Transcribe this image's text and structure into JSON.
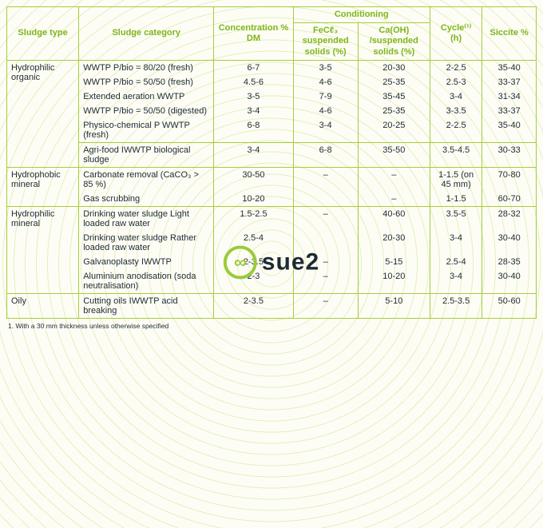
{
  "headers": {
    "type": "Sludge type",
    "category": "Sludge category",
    "concentration": "Concentration % DM",
    "conditioning": "Conditioning",
    "fecl3": "FeCℓ₃ suspended solids (%)",
    "caoh": "Ca(OH) /suspended solids (%)",
    "cycle": "Cycle⁽¹⁾ (h)",
    "siccite": "Siccite %"
  },
  "logo_text": "sue2",
  "footnote": "1. With a 30 mm thickness unless otherwise specified",
  "groups": [
    {
      "type": "Hydrophilic organic",
      "subgroups": [
        {
          "rows": [
            {
              "cat": "WWTP P/bio = 80/20 (fresh)",
              "conc": "6-7",
              "fe": "3-5",
              "ca": "20-30",
              "cy": "2-2.5",
              "si": "35-40"
            },
            {
              "cat": "WWTP P/bio = 50/50 (fresh)",
              "conc": "4.5-6",
              "fe": "4-6",
              "ca": "25-35",
              "cy": "2.5-3",
              "si": "33-37"
            },
            {
              "cat": "Extended aeration WWTP",
              "conc": "3-5",
              "fe": "7-9",
              "ca": "35-45",
              "cy": "3-4",
              "si": "31-34"
            },
            {
              "cat": "WWTP P/bio = 50/50 (digested)",
              "conc": "3-4",
              "fe": "4-6",
              "ca": "25-35",
              "cy": "3-3.5",
              "si": "33-37"
            },
            {
              "cat": "Physico-chemical P WWTP (fresh)",
              "conc": "6-8",
              "fe": "3-4",
              "ca": "20-25",
              "cy": "2-2.5",
              "si": "35-40"
            }
          ]
        },
        {
          "rows": [
            {
              "cat": "Agri-food IWWTP biological sludge",
              "conc": "3-4",
              "fe": "6-8",
              "ca": "35-50",
              "cy": "3.5-4.5",
              "si": "30-33"
            }
          ]
        }
      ]
    },
    {
      "type": "Hydrophobic mineral",
      "subgroups": [
        {
          "rows": [
            {
              "cat": "Carbonate removal (CaCO₃ > 85 %)",
              "conc": "30-50",
              "fe": "–",
              "ca": "–",
              "cy": "1-1.5 (on 45 mm)",
              "si": "70-80"
            },
            {
              "cat": "Gas scrubbing",
              "conc": "10-20",
              "fe": "",
              "ca": "–",
              "cy": "1-1.5",
              "si": "60-70"
            }
          ]
        }
      ]
    },
    {
      "type": "Hydrophilic mineral",
      "subgroups": [
        {
          "rows": [
            {
              "cat": "Drinking water sludge Light loaded raw water",
              "conc": "1.5-2.5",
              "fe": "–",
              "ca": "40-60",
              "cy": "3.5-5",
              "si": "28-32"
            },
            {
              "cat": "Drinking water sludge Rather loaded raw water",
              "conc": "2.5-4",
              "fe": "",
              "ca": "20-30",
              "cy": "3-4",
              "si": "30-40"
            },
            {
              "cat": "Galvanoplasty IWWTP",
              "conc": "2-3.5",
              "fe": "–",
              "ca": "5-15",
              "cy": "2.5-4",
              "si": "28-35"
            },
            {
              "cat": "Aluminium anodisation (soda neutralisation)",
              "conc": "2-3",
              "fe": "–",
              "ca": "10-20",
              "cy": "3-4",
              "si": "30-40"
            }
          ]
        }
      ]
    },
    {
      "type": "Oily",
      "subgroups": [
        {
          "rows": [
            {
              "cat": "Cutting oils IWWTP acid breaking",
              "conc": "2-3.5",
              "fe": "–",
              "ca": "5-10",
              "cy": "2.5-3.5",
              "si": "50-60"
            }
          ]
        }
      ]
    }
  ]
}
